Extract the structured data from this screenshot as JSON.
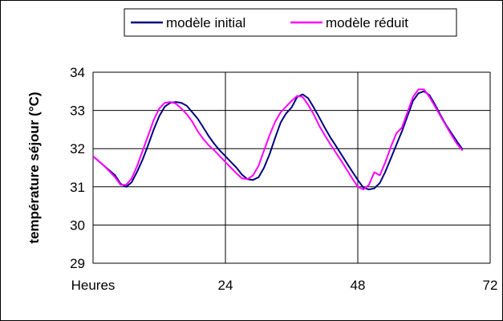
{
  "chart_data": {
    "type": "line",
    "title": "",
    "xlabel": "",
    "ylabel": "température séjour (°C)",
    "xlim": [
      0,
      72
    ],
    "ylim": [
      29,
      34
    ],
    "x_ticks": [
      {
        "value": 0,
        "label": "Heures"
      },
      {
        "value": 24,
        "label": "24"
      },
      {
        "value": 48,
        "label": "48"
      },
      {
        "value": 72,
        "label": "72"
      }
    ],
    "y_ticks": [
      29,
      30,
      31,
      32,
      33,
      34
    ],
    "grid": true,
    "legend_position": "top-right",
    "series": [
      {
        "name": "modèle initial",
        "color": "#000080",
        "points": [
          [
            0,
            31.8
          ],
          [
            2,
            31.55
          ],
          [
            4,
            31.3
          ],
          [
            5,
            31.08
          ],
          [
            6,
            31.0
          ],
          [
            7,
            31.12
          ],
          [
            8,
            31.4
          ],
          [
            9,
            31.72
          ],
          [
            10,
            32.1
          ],
          [
            11,
            32.5
          ],
          [
            12,
            32.85
          ],
          [
            13,
            33.1
          ],
          [
            14,
            33.2
          ],
          [
            15,
            33.22
          ],
          [
            16,
            33.2
          ],
          [
            17,
            33.12
          ],
          [
            18,
            32.95
          ],
          [
            19,
            32.78
          ],
          [
            20,
            32.55
          ],
          [
            21,
            32.32
          ],
          [
            22,
            32.12
          ],
          [
            23,
            31.95
          ],
          [
            24,
            31.8
          ],
          [
            25,
            31.65
          ],
          [
            26,
            31.5
          ],
          [
            27,
            31.32
          ],
          [
            28,
            31.2
          ],
          [
            29,
            31.18
          ],
          [
            30,
            31.25
          ],
          [
            31,
            31.5
          ],
          [
            32,
            31.85
          ],
          [
            33,
            32.28
          ],
          [
            34,
            32.68
          ],
          [
            35,
            32.92
          ],
          [
            36,
            33.08
          ],
          [
            37,
            33.35
          ],
          [
            38,
            33.42
          ],
          [
            39,
            33.32
          ],
          [
            40,
            33.08
          ],
          [
            41,
            32.82
          ],
          [
            42,
            32.55
          ],
          [
            43,
            32.3
          ],
          [
            44,
            32.08
          ],
          [
            45,
            31.85
          ],
          [
            46,
            31.62
          ],
          [
            47,
            31.4
          ],
          [
            48,
            31.18
          ],
          [
            49,
            30.98
          ],
          [
            50,
            30.93
          ],
          [
            51,
            30.96
          ],
          [
            52,
            31.1
          ],
          [
            53,
            31.4
          ],
          [
            54,
            31.75
          ],
          [
            55,
            32.1
          ],
          [
            56,
            32.45
          ],
          [
            57,
            32.85
          ],
          [
            58,
            33.25
          ],
          [
            59,
            33.45
          ],
          [
            60,
            33.5
          ],
          [
            61,
            33.4
          ],
          [
            62,
            33.15
          ],
          [
            63,
            32.88
          ],
          [
            64,
            32.62
          ],
          [
            65,
            32.4
          ],
          [
            66,
            32.18
          ],
          [
            67,
            31.98
          ]
        ]
      },
      {
        "name": "modèle réduit",
        "color": "#FF00FF",
        "points": [
          [
            0,
            31.8
          ],
          [
            2,
            31.55
          ],
          [
            4,
            31.25
          ],
          [
            5,
            31.05
          ],
          [
            6,
            31.05
          ],
          [
            7,
            31.22
          ],
          [
            8,
            31.55
          ],
          [
            9,
            31.95
          ],
          [
            10,
            32.35
          ],
          [
            11,
            32.75
          ],
          [
            12,
            33.05
          ],
          [
            13,
            33.2
          ],
          [
            14,
            33.22
          ],
          [
            15,
            33.18
          ],
          [
            16,
            33.05
          ],
          [
            17,
            32.9
          ],
          [
            18,
            32.7
          ],
          [
            19,
            32.45
          ],
          [
            20,
            32.25
          ],
          [
            21,
            32.08
          ],
          [
            22,
            31.95
          ],
          [
            23,
            31.8
          ],
          [
            24,
            31.65
          ],
          [
            25,
            31.5
          ],
          [
            26,
            31.35
          ],
          [
            27,
            31.22
          ],
          [
            28,
            31.2
          ],
          [
            29,
            31.3
          ],
          [
            30,
            31.55
          ],
          [
            31,
            31.95
          ],
          [
            32,
            32.35
          ],
          [
            33,
            32.7
          ],
          [
            34,
            32.95
          ],
          [
            35,
            33.1
          ],
          [
            36,
            33.25
          ],
          [
            37,
            33.38
          ],
          [
            38,
            33.35
          ],
          [
            39,
            33.15
          ],
          [
            40,
            32.9
          ],
          [
            41,
            32.6
          ],
          [
            42,
            32.35
          ],
          [
            43,
            32.12
          ],
          [
            44,
            31.9
          ],
          [
            45,
            31.68
          ],
          [
            46,
            31.45
          ],
          [
            47,
            31.22
          ],
          [
            48,
            31.0
          ],
          [
            49,
            30.93
          ],
          [
            50,
            31.05
          ],
          [
            51,
            31.38
          ],
          [
            52,
            31.3
          ],
          [
            53,
            31.65
          ],
          [
            54,
            32.05
          ],
          [
            55,
            32.4
          ],
          [
            56,
            32.55
          ],
          [
            57,
            32.95
          ],
          [
            58,
            33.35
          ],
          [
            59,
            33.55
          ],
          [
            60,
            33.55
          ],
          [
            61,
            33.35
          ],
          [
            62,
            33.1
          ],
          [
            63,
            32.85
          ],
          [
            64,
            32.6
          ],
          [
            65,
            32.35
          ],
          [
            66,
            32.12
          ],
          [
            67,
            31.95
          ]
        ]
      }
    ]
  }
}
